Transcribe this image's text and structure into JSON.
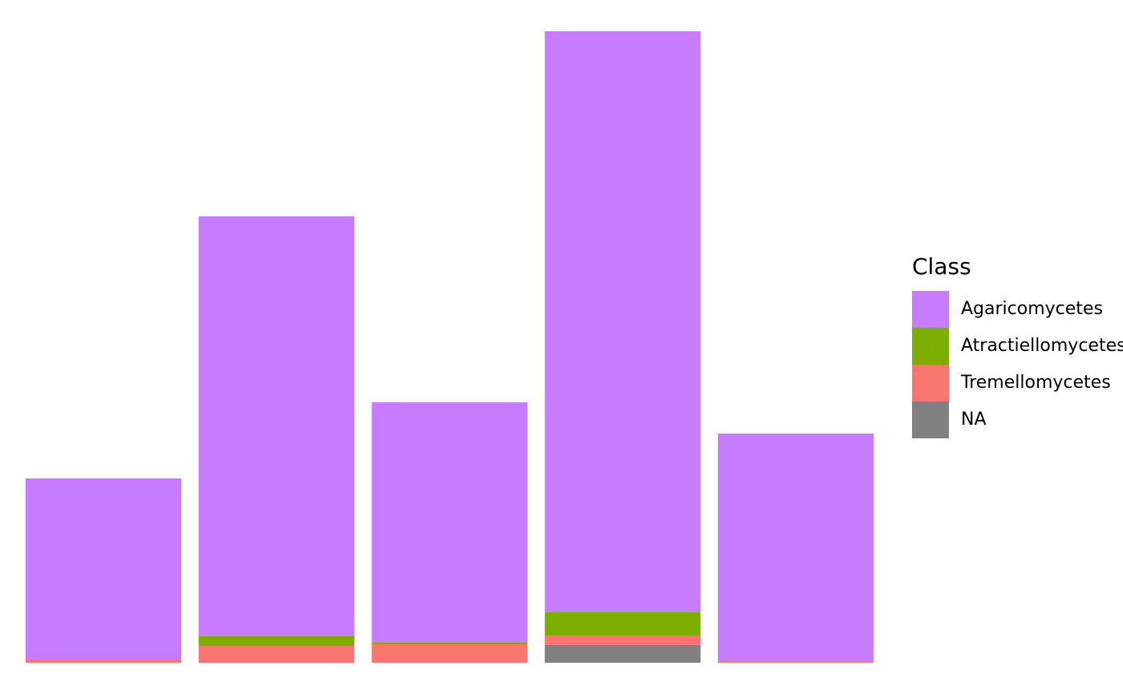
{
  "chart_data": {
    "type": "stacked-bar",
    "categories": [
      null,
      null,
      null,
      null,
      null
    ],
    "series": [
      {
        "name": "Agaricomycetes",
        "color": "#c77cff",
        "values": [
          226,
          524,
          300,
          725,
          285
        ]
      },
      {
        "name": "Atractiellomycetes",
        "color": "#7cae00",
        "values": [
          0,
          12,
          2,
          29,
          0
        ]
      },
      {
        "name": "Tremellomycetes",
        "color": "#f8766d",
        "values": [
          4,
          21,
          23,
          12,
          1
        ]
      },
      {
        "name": "NA",
        "color": "#808080",
        "values": [
          0,
          0,
          0,
          22,
          0
        ]
      }
    ],
    "ylim": [
      0,
      788
    ],
    "legend": {
      "title": "Class",
      "position": "right"
    }
  }
}
